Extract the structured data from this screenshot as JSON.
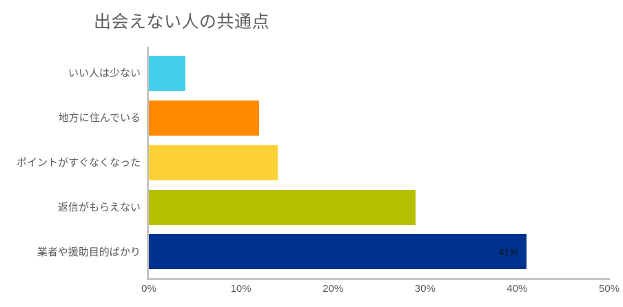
{
  "chart_data": {
    "type": "bar",
    "orientation": "horizontal",
    "title": "出会えない人の共通点",
    "xlabel": "",
    "ylabel": "",
    "xlim": [
      0,
      50
    ],
    "x_ticks": [
      "0%",
      "10%",
      "20%",
      "30%",
      "40%",
      "50%"
    ],
    "grid": false,
    "legend": null,
    "categories": [
      "いい人は少ない",
      "地方に住んでいる",
      "ポイントがすぐなくなった",
      "返信がもらえない",
      "業者や援助目的ばかり"
    ],
    "values": [
      4,
      12,
      14,
      29,
      41
    ],
    "unit": "%",
    "colors": [
      "#44cfea",
      "#ff8a00",
      "#fed236",
      "#b7c000",
      "#00338f"
    ],
    "data_labels": [
      {
        "category": "業者や援助目的ばかり",
        "text": "41%"
      }
    ]
  },
  "bars": [
    {
      "label": "いい人は少ない",
      "value": 4,
      "color": "#44cfea",
      "value_label": ""
    },
    {
      "label": "地方に住んでいる",
      "value": 12,
      "color": "#ff8a00",
      "value_label": ""
    },
    {
      "label": "ポイントがすぐなくなった",
      "value": 14,
      "color": "#fed236",
      "value_label": ""
    },
    {
      "label": "返信がもらえない",
      "value": 29,
      "color": "#b7c000",
      "value_label": ""
    },
    {
      "label": "業者や援助目的ばかり",
      "value": 41,
      "color": "#00338f",
      "value_label": "41%"
    }
  ],
  "axis": {
    "ticks": [
      "0%",
      "10%",
      "20%",
      "30%",
      "40%",
      "50%"
    ]
  }
}
